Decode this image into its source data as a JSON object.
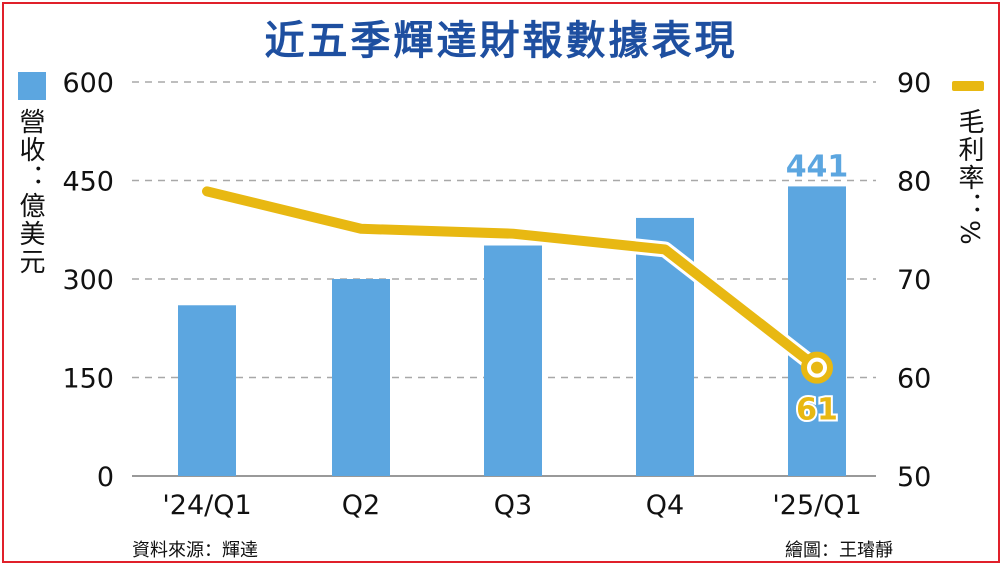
{
  "title": "近五季輝達財報數據表現",
  "left_axis_label": "營收：億美元",
  "right_axis_label": "毛利率：%",
  "source": "資料來源：輝達",
  "credit": "繪圖：王璿靜",
  "colors": {
    "bar": "#5ca6e0",
    "line": "#e8b812",
    "title": "#1e4fa0",
    "border": "#e0202a"
  },
  "chart_data": {
    "type": "bar",
    "categories": [
      "'24/Q1",
      "Q2",
      "Q3",
      "Q4",
      "'25/Q1"
    ],
    "series": [
      {
        "values": [
          260,
          300,
          351,
          393,
          441
        ],
        "axis": "left",
        "type": "bar"
      },
      {
        "values": [
          78.9,
          75.1,
          74.6,
          73.0,
          61.0
        ],
        "axis": "right",
        "type": "line"
      }
    ],
    "y_left": {
      "range": [
        0,
        600
      ],
      "ticks": [
        0,
        150,
        300,
        450,
        600
      ]
    },
    "y_right": {
      "range": [
        50,
        90
      ],
      "ticks": [
        50,
        60,
        70,
        80,
        90
      ]
    },
    "data_labels": {
      "bar_last": "441",
      "line_last": "61"
    },
    "grid": true
  }
}
